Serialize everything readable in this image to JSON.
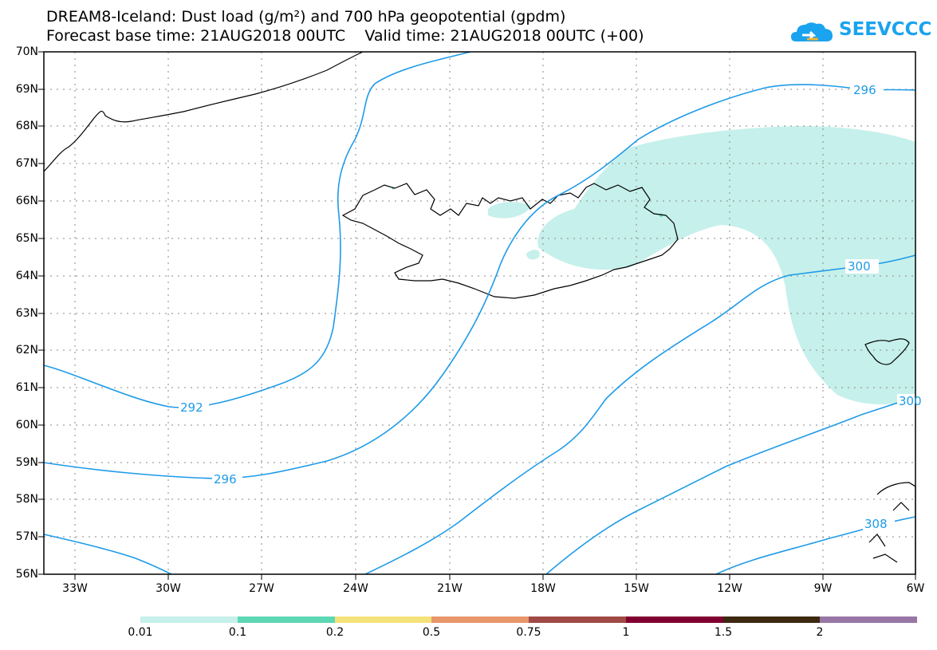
{
  "title": {
    "line1": "DREAM8-Iceland: Dust load (g/m²) and 700 hPa geopotential (gpdm)",
    "line2": "Forecast base time: 21AUG2018 00UTC    Valid time: 21AUG2018 00UTC (+00)"
  },
  "logo": {
    "text": "SEEVCCC",
    "color": "#1aa3ee"
  },
  "axes": {
    "lat_ticks": [
      "70N",
      "69N",
      "68N",
      "67N",
      "66N",
      "65N",
      "64N",
      "63N",
      "62N",
      "61N",
      "60N",
      "59N",
      "58N",
      "57N",
      "56N"
    ],
    "lon_ticks": [
      "33W",
      "30W",
      "27W",
      "24W",
      "21W",
      "18W",
      "15W",
      "12W",
      "9W",
      "6W"
    ]
  },
  "contours": {
    "color": "#1e9be8",
    "labels": [
      "292",
      "296",
      "296",
      "300",
      "300",
      "308"
    ]
  },
  "dust_area": {
    "color": "#c6f0eb",
    "min_level": "0.01"
  },
  "colorbar": {
    "labels": [
      "0.01",
      "0.1",
      "0.2",
      "0.5",
      "0.75",
      "1",
      "1.5",
      "2"
    ],
    "colors": [
      "#c6f0eb",
      "#5ed7b4",
      "#f4e27a",
      "#e8976a",
      "#a04a45",
      "#800030",
      "#3d2810",
      "#9877a6"
    ]
  }
}
